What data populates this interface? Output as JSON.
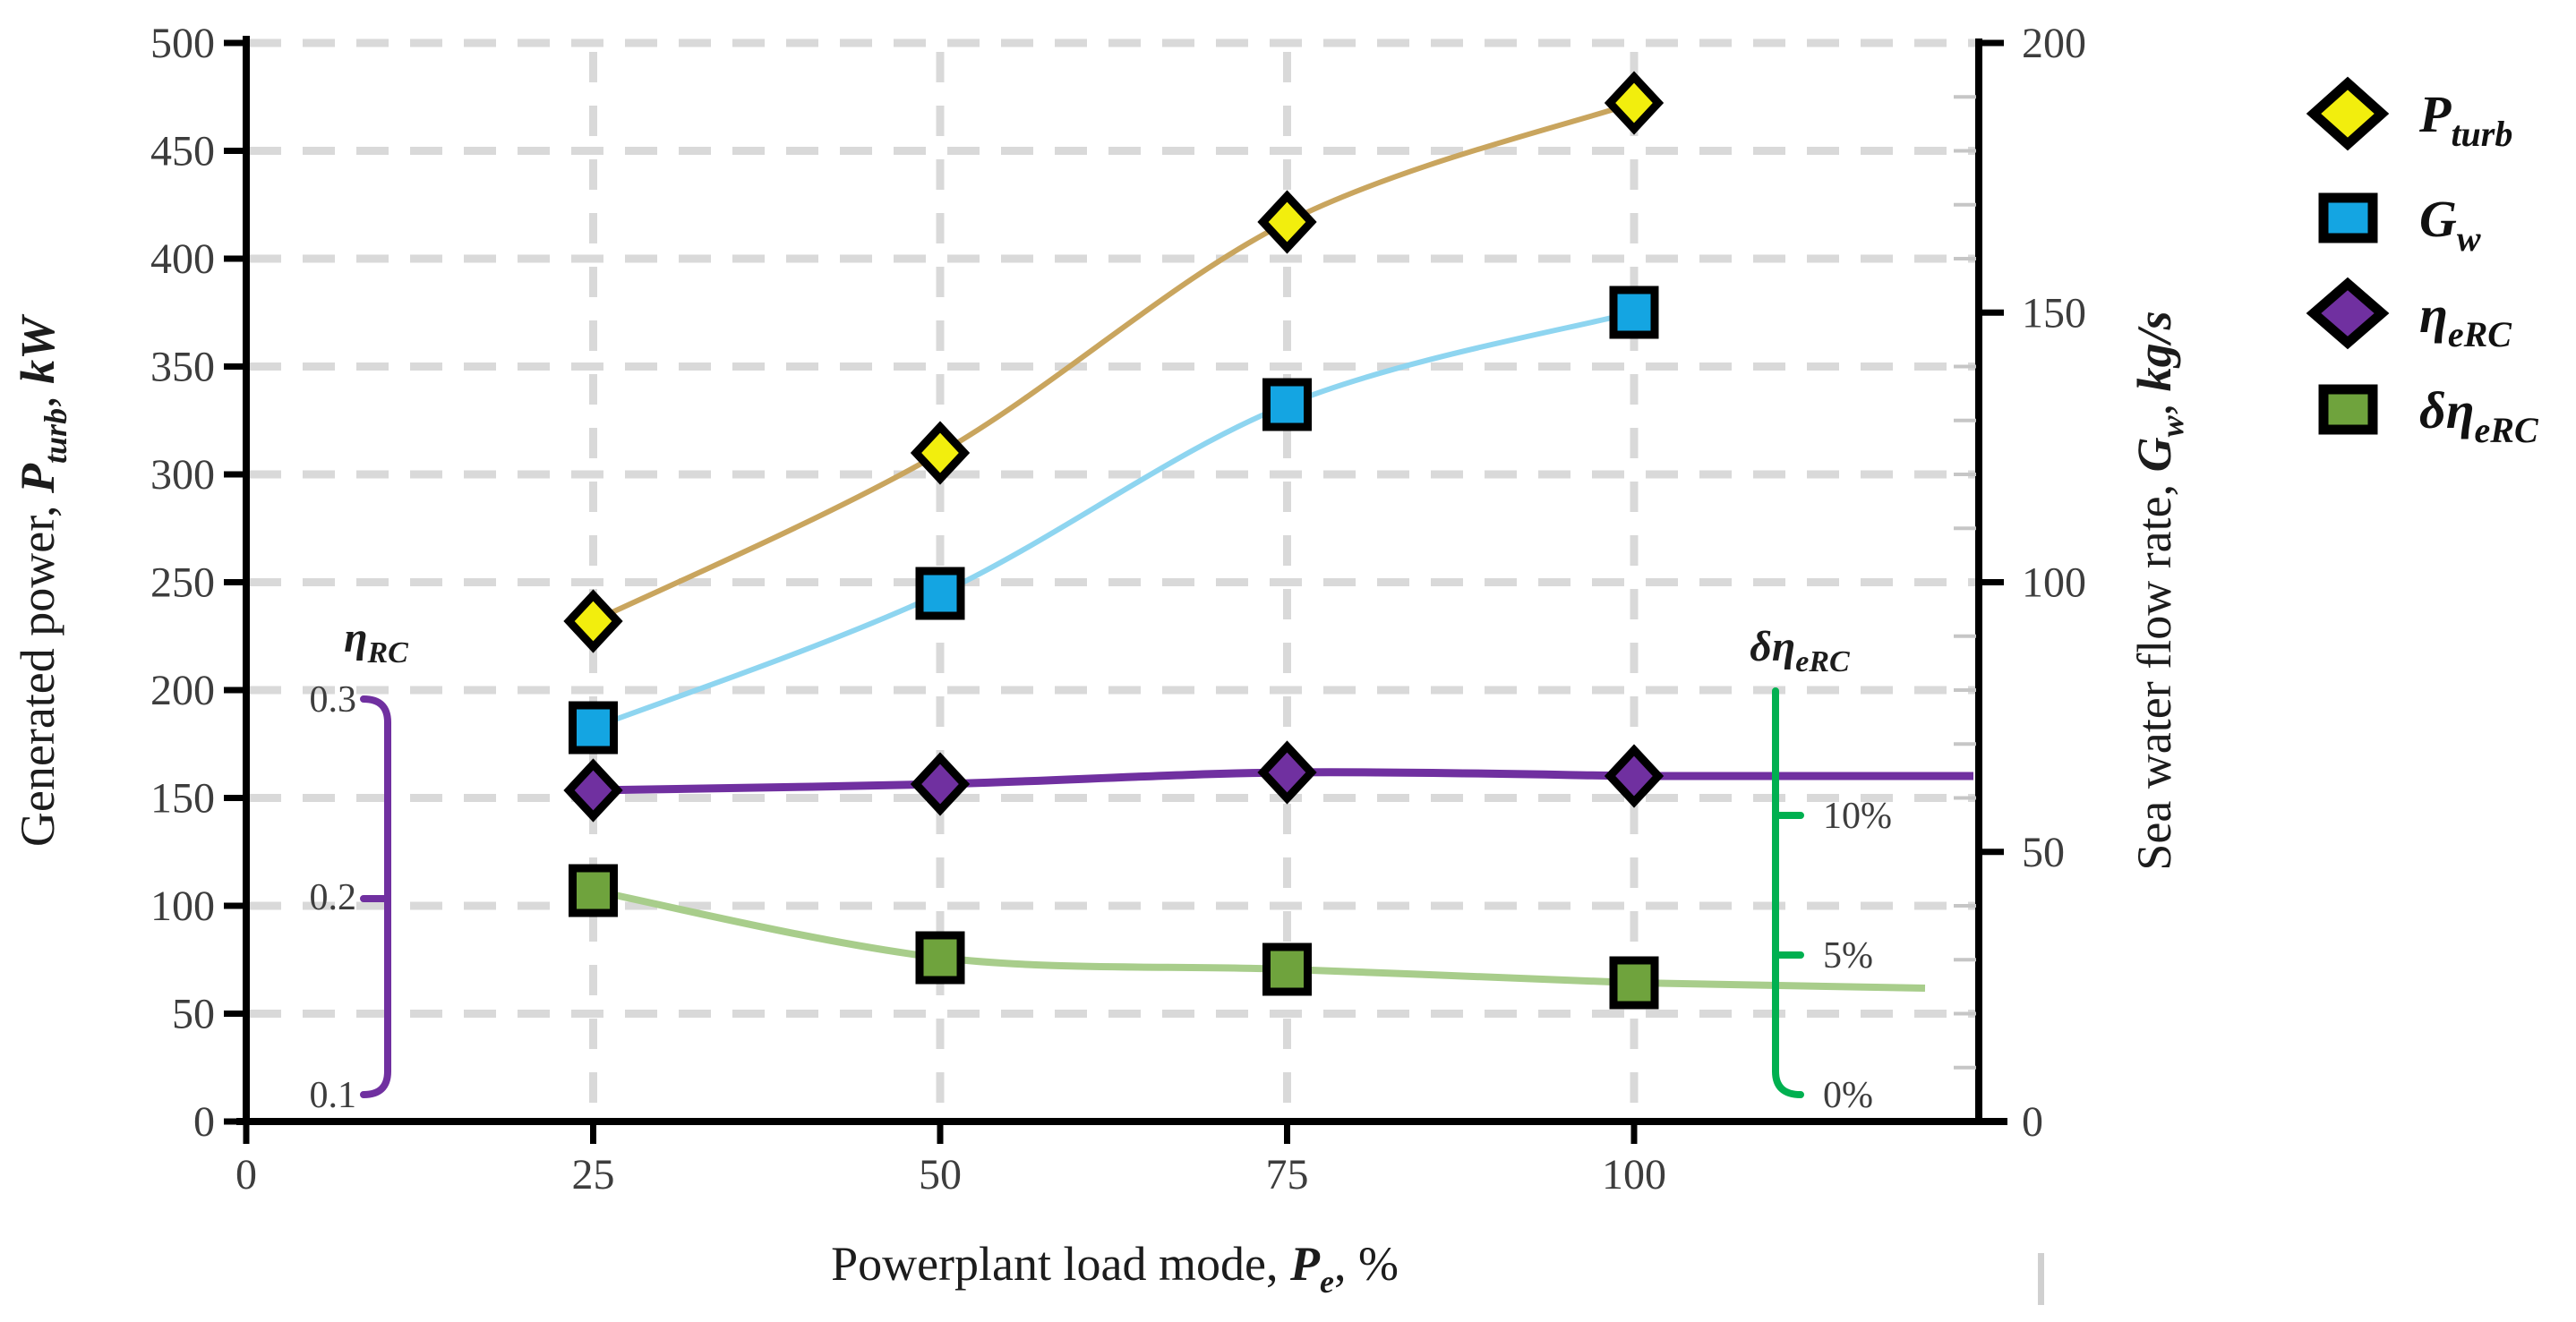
{
  "colors": {
    "p_turb_marker": "#f2ee0d",
    "p_turb_line": "#c9a55e",
    "g_w_marker": "#14a5e2",
    "g_w_line": "#8ed5f0",
    "eta_marker": "#7030a0",
    "eta_line": "#7030a0",
    "delta_marker": "#6fa33d",
    "delta_line": "#a8cd8b",
    "inner_left_axis": "#7030a0",
    "inner_right_axis": "#00b050",
    "grid": "#d9d9d9",
    "axis": "#000000",
    "minor_tick": "#c6c6c6",
    "artifact": "#d0d0d0"
  },
  "axes": {
    "left": {
      "title_prefix": "Generated power, ",
      "sym": "P",
      "sub": "turb",
      "mid": ", ",
      "unit": "kW",
      "ticks": [
        "0",
        "50",
        "100",
        "150",
        "200",
        "250",
        "300",
        "350",
        "400",
        "450",
        "500"
      ]
    },
    "right": {
      "title_prefix": "Sea water flow rate, ",
      "sym": "G",
      "sub": "w",
      "mid": ", ",
      "unit": "kg/s",
      "ticks": [
        "0",
        "50",
        "100",
        "150",
        "200"
      ]
    },
    "x": {
      "title_prefix": "Powerplant load mode, ",
      "sym": "P",
      "sub": "e",
      "suffix": ", %",
      "ticks": [
        "0",
        "25",
        "50",
        "75",
        "100"
      ]
    },
    "inner_left": {
      "title_sym": "η",
      "title_sub": "RC",
      "ticks": [
        "0.1",
        "0.2",
        "0.3"
      ]
    },
    "inner_right": {
      "title_sym": "δη",
      "title_sub": "eRC",
      "ticks": [
        "0%",
        "5%",
        "10%"
      ]
    }
  },
  "legend": {
    "items": [
      {
        "sym": "P",
        "sub": "turb",
        "marker": "diamond",
        "color": "#f2ee0d"
      },
      {
        "sym": "G",
        "sub": "w",
        "marker": "square",
        "color": "#14a5e2"
      },
      {
        "sym": "η",
        "sub": "eRC",
        "marker": "diamond",
        "color": "#7030a0"
      },
      {
        "sym": "δη",
        "sub": "eRC",
        "marker": "square",
        "color": "#6fa33d"
      }
    ]
  },
  "chart_data": {
    "type": "line",
    "x": [
      25,
      50,
      75,
      100
    ],
    "xlabel": "Powerplant load mode, Pe, %",
    "ylabel_left": "Generated power, Pturb, kW",
    "ylabel_right": "Sea water flow rate, Gw, kg/s",
    "ylim_left": [
      0,
      500
    ],
    "ylim_right": [
      0,
      200
    ],
    "ytick_step_left": 50,
    "ytick_step_right": 50,
    "grid": true,
    "legend_position": "right-outside",
    "inner_left_scale": {
      "label": "ηRC",
      "ticks": [
        0.1,
        0.2,
        0.3
      ]
    },
    "inner_right_scale": {
      "label": "δηeRC",
      "ticks": [
        "0%",
        "5%",
        "10%"
      ]
    },
    "series": [
      {
        "name": "P_turb",
        "axis": "left",
        "units": "kW",
        "marker": "diamond",
        "values": [
          232,
          310,
          417,
          472
        ]
      },
      {
        "name": "G_w",
        "axis": "right",
        "units": "kg/s",
        "marker": "square",
        "values": [
          73,
          98,
          133,
          150
        ]
      },
      {
        "name": "eta_eRC",
        "axis": "inner_left",
        "units": "",
        "marker": "diamond",
        "values": [
          0.254,
          0.257,
          0.263,
          0.261
        ]
      },
      {
        "name": "delta_eta_eRC",
        "axis": "inner_right",
        "units": "%",
        "marker": "square",
        "values": [
          7.3,
          4.9,
          4.5,
          4.0
        ]
      }
    ]
  }
}
